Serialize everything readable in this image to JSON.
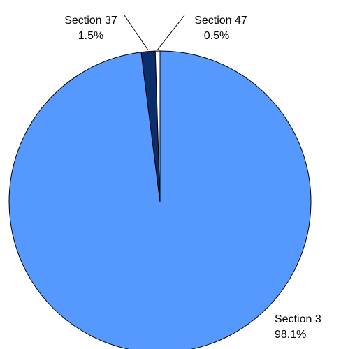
{
  "chart_data": {
    "type": "pie",
    "title": "",
    "start": "12 o'clock",
    "direction": "clockwise",
    "slices": [
      {
        "label": "Section 3",
        "value": 98.1,
        "value_label": "98.1%",
        "color": "#5599FF"
      },
      {
        "label": "Section 37",
        "value": 1.5,
        "value_label": "1.5%",
        "color": "#0B2E6B"
      },
      {
        "label": "Section 47",
        "value": 0.5,
        "value_label": "0.5%",
        "color": "#FFFFFF"
      }
    ],
    "legend": "none",
    "slice_border_color": "#000000"
  }
}
